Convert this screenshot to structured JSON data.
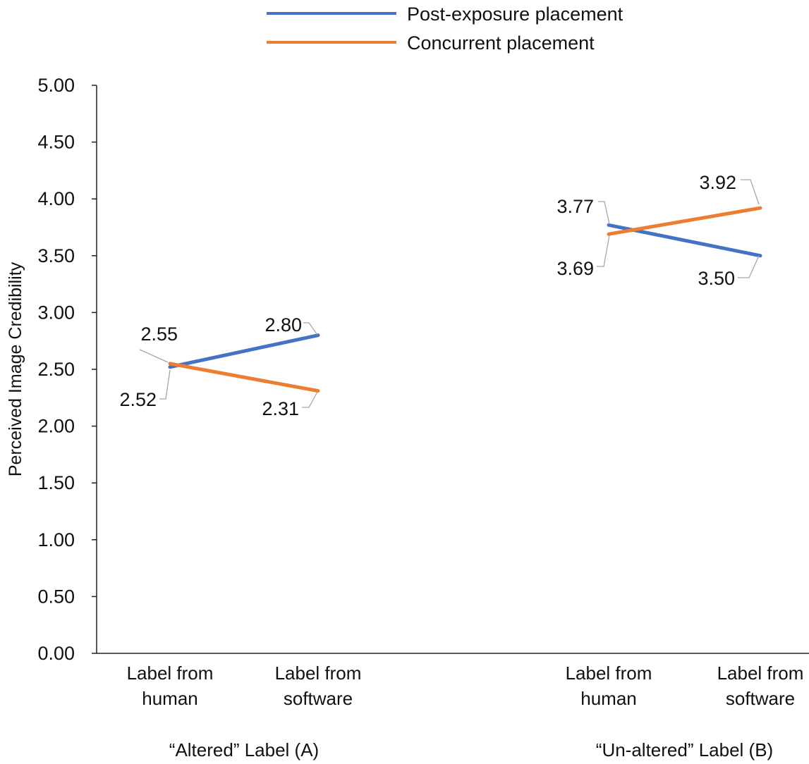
{
  "chart_data": {
    "type": "line",
    "title": "",
    "ylabel": "Perceived Image Credibility",
    "xlabel": "",
    "ylim": [
      0,
      5
    ],
    "yticks": [
      0,
      0.5,
      1,
      1.5,
      2,
      2.5,
      3,
      3.5,
      4,
      4.5,
      5
    ],
    "ytick_labels": [
      "0.00",
      "0.50",
      "1.00",
      "1.50",
      "2.00",
      "2.50",
      "3.00",
      "3.50",
      "4.00",
      "4.50",
      "5.00"
    ],
    "grid": false,
    "legend_position": "top-center",
    "groups": [
      {
        "label": "“Altered” Label (A)",
        "categories": [
          [
            "Label from",
            "human"
          ],
          [
            "Label from",
            "software"
          ]
        ]
      },
      {
        "label": "“Un-altered” Label (B)",
        "categories": [
          [
            "Label from",
            "human"
          ],
          [
            "Label from",
            "software"
          ]
        ]
      }
    ],
    "series": [
      {
        "name": "Post-exposure placement",
        "color": "#4472C4",
        "values": [
          [
            2.52,
            2.8
          ],
          [
            3.77,
            3.5
          ]
        ],
        "labels": [
          [
            "2.52",
            "2.80"
          ],
          [
            "3.77",
            "3.50"
          ]
        ]
      },
      {
        "name": "Concurrent placement",
        "color": "#ED7D31",
        "values": [
          [
            2.55,
            2.31
          ],
          [
            3.69,
            3.92
          ]
        ],
        "labels": [
          [
            "2.55",
            "2.31"
          ],
          [
            "3.69",
            "3.92"
          ]
        ]
      }
    ]
  }
}
